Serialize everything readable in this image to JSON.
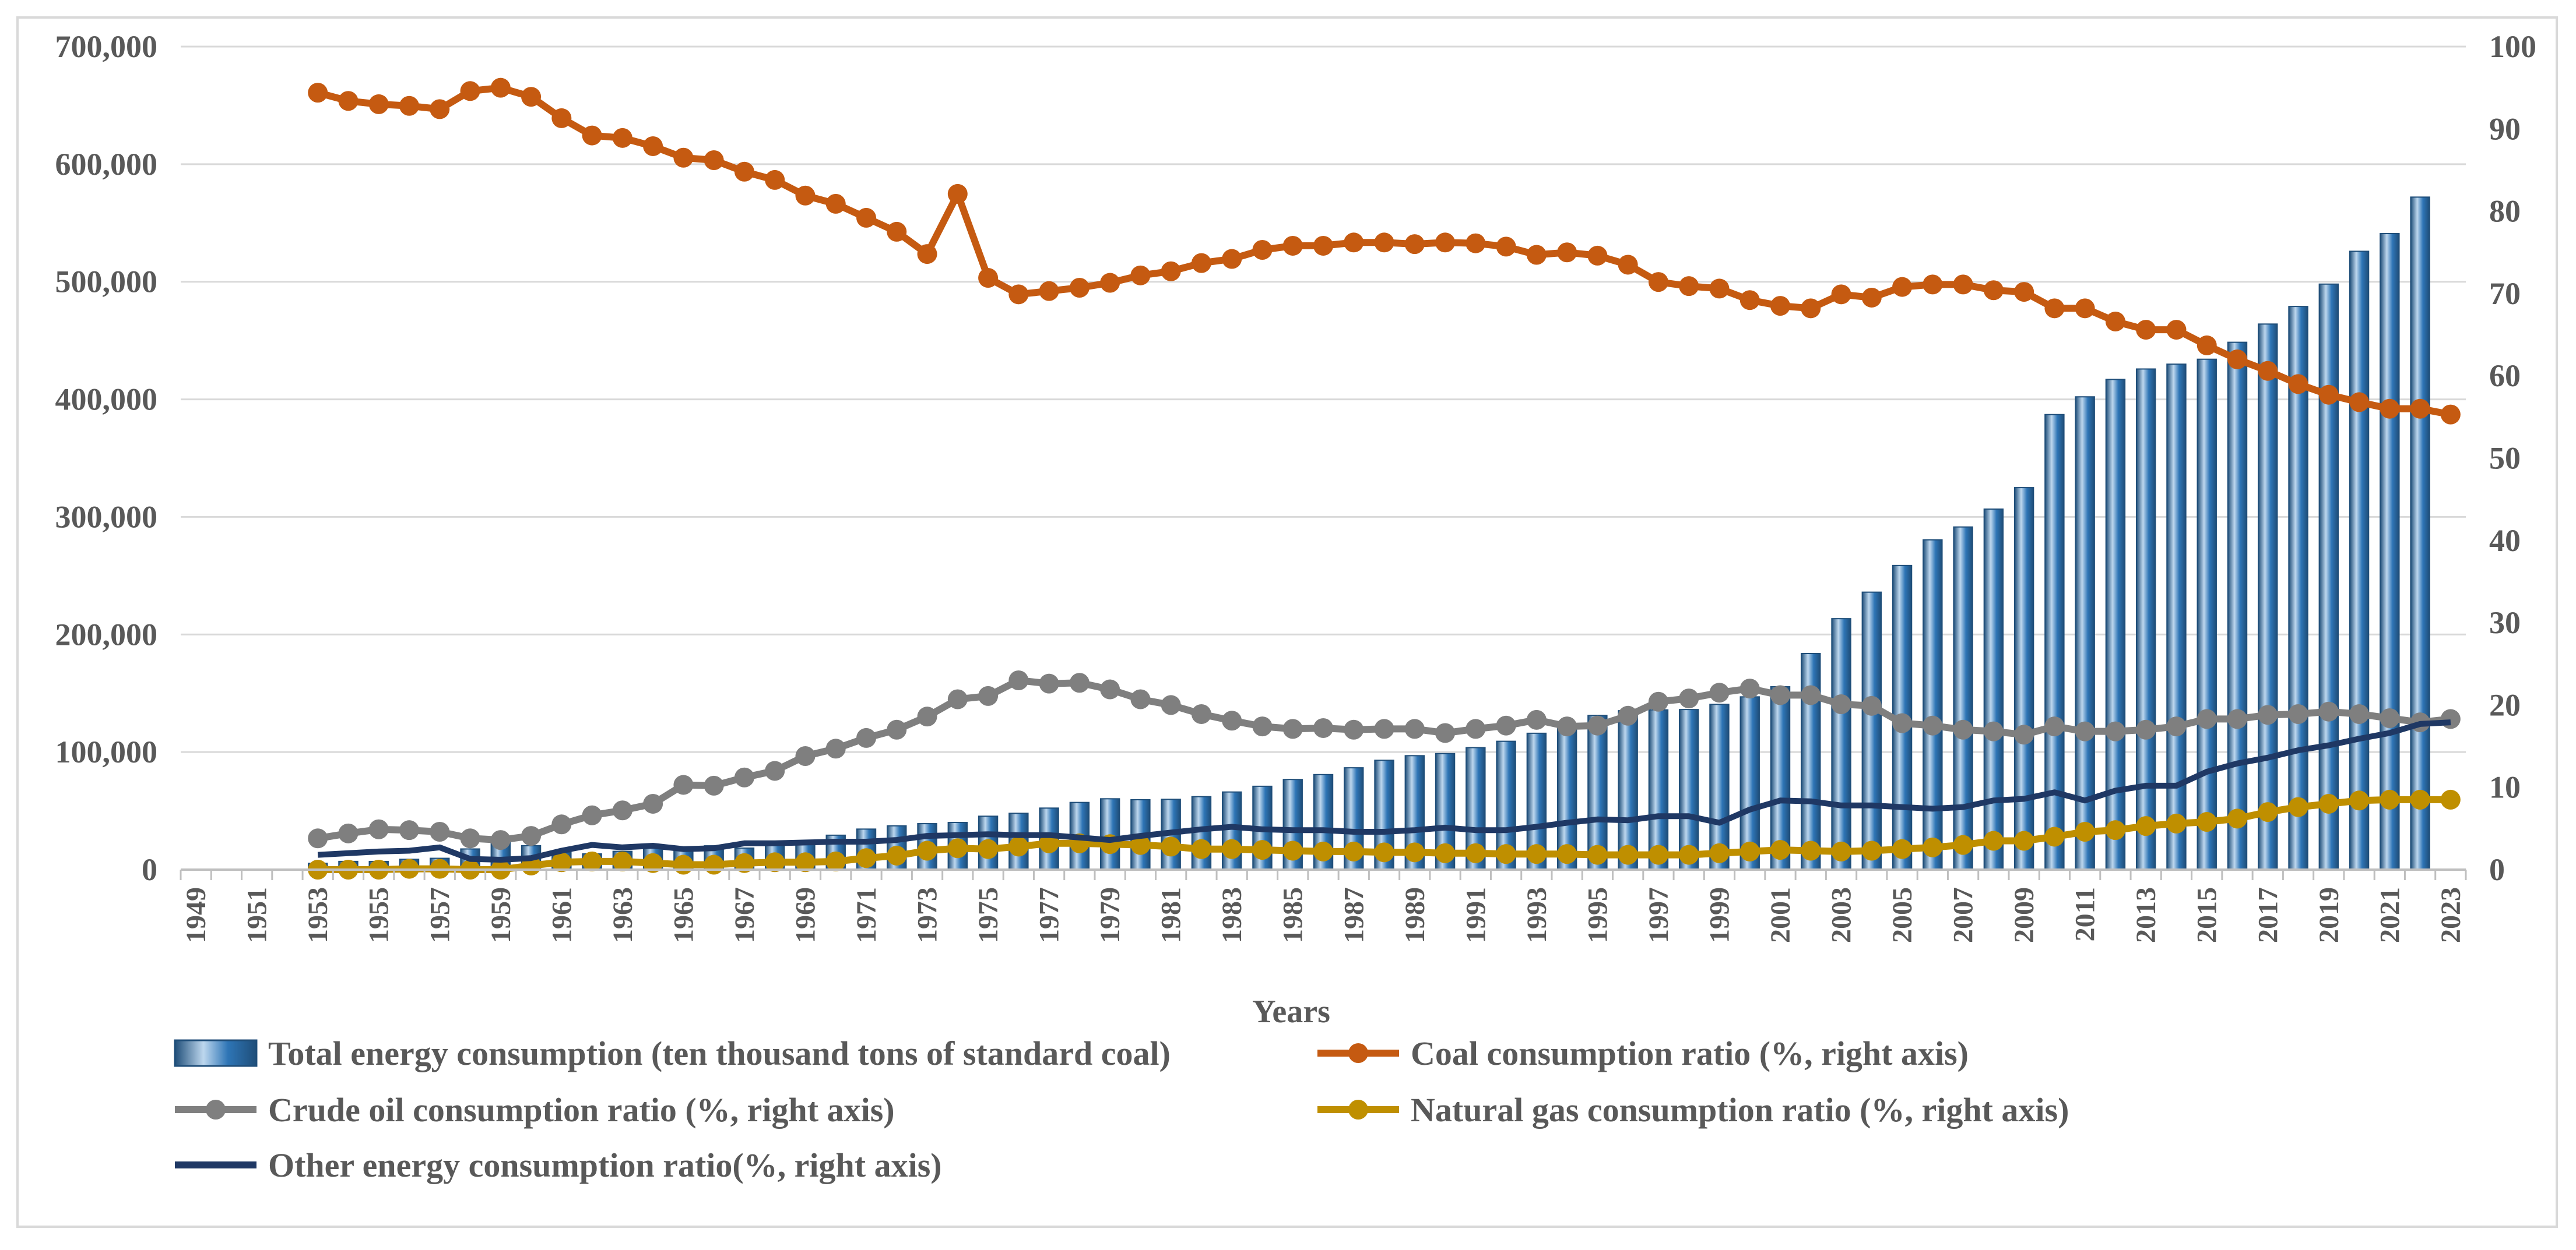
{
  "chart_data": {
    "type": "bar+line",
    "title": "",
    "xlabel": "Years",
    "ylabel": "",
    "ylim": [
      0,
      700000
    ],
    "y2lim": [
      0,
      100
    ],
    "y_ticks": [
      "0",
      "100,000",
      "200,000",
      "300,000",
      "400,000",
      "500,000",
      "600,000",
      "700,000"
    ],
    "y2_ticks": [
      "0",
      "10",
      "20",
      "30",
      "40",
      "50",
      "60",
      "70",
      "80",
      "90",
      "100"
    ],
    "x_tick_labels": [
      "1949",
      "1951",
      "1953",
      "1955",
      "1957",
      "1959",
      "1961",
      "1963",
      "1965",
      "1967",
      "1969",
      "1971",
      "1973",
      "1975",
      "1977",
      "1979",
      "1981",
      "1983",
      "1985",
      "1987",
      "1989",
      "1991",
      "1993",
      "1995",
      "1997",
      "1999",
      "2001",
      "2003",
      "2005",
      "2007",
      "2009",
      "2011",
      "2013",
      "2015",
      "2017",
      "2019",
      "2021",
      "2023"
    ],
    "x_start": 1949,
    "x_end": 2023,
    "legend_position": "bottom",
    "colors": {
      "total": "#2e75b6",
      "total_light": "#bdd7ee",
      "total_dark": "#1f4e79",
      "coal": "#c55a11",
      "oil": "#7f7f7f",
      "gas": "#bf8f00",
      "other": "#1f3864",
      "grid": "#d9d9d9",
      "text": "#595959"
    },
    "series": [
      {
        "name": "Total energy consumption (ten thousand  tons of standard coal)",
        "type": "bar",
        "axis": "left",
        "start_year": 1953,
        "values": [
          5411,
          7000,
          6968,
          8800,
          9644,
          17599,
          23926,
          20390,
          14910,
          13400,
          15567,
          18901,
          18901,
          20269,
          18328,
          21000,
          22700,
          29291,
          34496,
          37273,
          39109,
          40144,
          45425,
          47900,
          52354,
          57144,
          60275,
          59447,
          59797,
          62067,
          66040,
          70904,
          76682,
          80850,
          86632,
          92997,
          96934,
          98703,
          103783,
          109170,
          115993,
          122737,
          131176,
          135192,
          135909,
          136184,
          140569,
          146964,
          155547,
          183792,
          213456,
          235997,
          258676,
          280508,
          291448,
          306647,
          324939,
          387043,
          402138,
          416913,
          425806,
          429905,
          434113,
          448529,
          464029,
          479000,
          498000,
          525896,
          541000,
          572000
        ]
      },
      {
        "name": "Coal consumption ratio (%, right axis)",
        "type": "line",
        "axis": "right",
        "start_year": 1953,
        "values": [
          94.4,
          93.4,
          93.0,
          92.8,
          92.4,
          94.6,
          95.0,
          93.9,
          91.3,
          89.2,
          88.9,
          87.9,
          86.5,
          86.2,
          84.8,
          83.8,
          81.9,
          80.9,
          79.2,
          77.5,
          74.8,
          82.1,
          71.9,
          69.9,
          70.3,
          70.7,
          71.3,
          72.2,
          72.7,
          73.7,
          74.2,
          75.3,
          75.8,
          75.8,
          76.2,
          76.2,
          76.0,
          76.2,
          76.1,
          75.7,
          74.7,
          75.0,
          74.6,
          73.5,
          71.4,
          70.9,
          70.6,
          69.2,
          68.5,
          68.2,
          69.9,
          69.5,
          70.8,
          71.1,
          71.1,
          70.4,
          70.2,
          68.2,
          68.2,
          66.6,
          65.6,
          65.6,
          63.7,
          62.0,
          60.6,
          59.0,
          57.7,
          56.8,
          56.0,
          56.0,
          55.3
        ]
      },
      {
        "name": "Crude oil consumption ratio (%, right axis)",
        "type": "line",
        "axis": "right",
        "start_year": 1953,
        "values": [
          3.8,
          4.4,
          4.9,
          4.8,
          4.6,
          3.8,
          3.6,
          4.1,
          5.5,
          6.6,
          7.2,
          8.0,
          10.3,
          10.2,
          11.2,
          12.0,
          13.8,
          14.7,
          16.0,
          17.0,
          18.6,
          20.7,
          21.1,
          23.0,
          22.6,
          22.7,
          21.9,
          20.7,
          20.0,
          18.9,
          18.1,
          17.4,
          17.1,
          17.2,
          17.0,
          17.1,
          17.1,
          16.6,
          17.1,
          17.5,
          18.2,
          17.4,
          17.5,
          18.7,
          20.4,
          20.8,
          21.5,
          22.0,
          21.2,
          21.2,
          20.1,
          19.9,
          17.8,
          17.5,
          17.0,
          16.8,
          16.4,
          17.4,
          16.8,
          16.8,
          17.0,
          17.4,
          18.3,
          18.3,
          18.8,
          18.9,
          19.2,
          18.9,
          18.4,
          17.9,
          18.3
        ]
      },
      {
        "name": "Natural gas consumption ratio (%, right axis)",
        "type": "line",
        "axis": "right",
        "start_year": 1953,
        "values": [
          0.0,
          0.0,
          0.0,
          0.1,
          0.1,
          0.0,
          0.0,
          0.5,
          0.9,
          1.0,
          1.0,
          0.8,
          0.6,
          0.6,
          0.8,
          0.9,
          0.9,
          1.0,
          1.4,
          1.7,
          2.3,
          2.6,
          2.5,
          2.8,
          3.2,
          3.2,
          3.1,
          3.0,
          2.8,
          2.5,
          2.5,
          2.4,
          2.3,
          2.2,
          2.2,
          2.1,
          2.1,
          2.0,
          2.0,
          1.9,
          1.9,
          1.9,
          1.8,
          1.8,
          1.8,
          1.8,
          2.0,
          2.2,
          2.4,
          2.3,
          2.2,
          2.3,
          2.5,
          2.7,
          3.0,
          3.5,
          3.5,
          4.0,
          4.6,
          4.8,
          5.3,
          5.6,
          5.8,
          6.2,
          7.0,
          7.6,
          8.0,
          8.4,
          8.5,
          8.5,
          8.5
        ]
      },
      {
        "name": "Other energy consumption ratio(%, right axis)",
        "type": "line",
        "axis": "right",
        "start_year": 1953,
        "values": [
          1.8,
          2.0,
          2.2,
          2.3,
          2.7,
          1.3,
          1.2,
          1.4,
          2.3,
          3.0,
          2.7,
          2.9,
          2.5,
          2.6,
          3.2,
          3.2,
          3.3,
          3.4,
          3.4,
          3.6,
          4.1,
          4.2,
          4.3,
          4.2,
          4.2,
          3.9,
          3.6,
          4.1,
          4.5,
          4.9,
          5.2,
          4.9,
          4.8,
          4.8,
          4.6,
          4.6,
          4.8,
          5.1,
          4.8,
          4.8,
          5.2,
          5.7,
          6.1,
          6.0,
          6.5,
          6.5,
          5.7,
          7.3,
          8.4,
          8.3,
          7.8,
          7.8,
          7.6,
          7.4,
          7.6,
          8.4,
          8.6,
          9.4,
          8.4,
          9.6,
          10.2,
          10.2,
          11.9,
          12.9,
          13.6,
          14.5,
          15.1,
          15.9,
          16.6,
          17.7,
          17.9
        ]
      }
    ]
  }
}
